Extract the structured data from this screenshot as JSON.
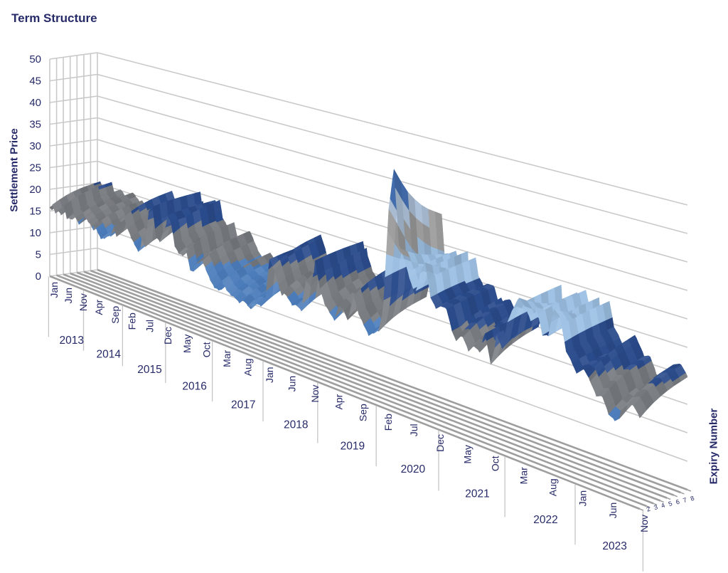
{
  "title": "Term Structure",
  "chart_data": {
    "type": "surface",
    "title": "Term Structure",
    "legend": "none",
    "grid": true,
    "y_axis": {
      "title": "Settlement Price",
      "min": 0,
      "max": 50,
      "step": 5,
      "ticks": [
        0,
        5,
        10,
        15,
        20,
        25,
        30,
        35,
        40,
        45,
        50
      ]
    },
    "x_axis": {
      "title": "",
      "unit": "month",
      "start": "Jan 2013",
      "end": "Nov 2023",
      "tick_positions": [
        0,
        5,
        10,
        15,
        20,
        25,
        30,
        35,
        40,
        45,
        50,
        55,
        60,
        65,
        70,
        75,
        80,
        85,
        90,
        95,
        100,
        105,
        110,
        115,
        120,
        125,
        130
      ],
      "tick_labels": [
        "Jan",
        "Jun",
        "Nov",
        "Apr",
        "Sep",
        "Feb",
        "Jul",
        "Dec",
        "May",
        "Oct",
        "Mar",
        "Aug",
        "Jan",
        "Jun",
        "Nov",
        "Apr",
        "Sep",
        "Feb",
        "Jul",
        "Dec",
        "May",
        "Oct",
        "Mar",
        "Aug",
        "Jan",
        "Jun",
        "Nov"
      ],
      "year_labels": [
        "2013",
        "2014",
        "2015",
        "2016",
        "2017",
        "2018",
        "2019",
        "2020",
        "2021",
        "2022",
        "2023"
      ]
    },
    "z_axis": {
      "title": "Expiry Number",
      "labels": [
        "2",
        "3",
        "4",
        "5",
        "6",
        "7",
        "8"
      ],
      "count": 8
    },
    "band_colors": [
      {
        "range": "0-5",
        "color": "#203864"
      },
      {
        "range": "5-10",
        "color": "#2F5597"
      },
      {
        "range": "10-15",
        "color": "#4C7DBB"
      },
      {
        "range": "15-20",
        "color": "#75797E"
      },
      {
        "range": "20-25",
        "color": "#2B4C8C"
      },
      {
        "range": "25-30",
        "color": "#9FC2E5"
      },
      {
        "range": "30-35",
        "color": "#A9A9A9"
      },
      {
        "range": "35-40",
        "color": "#BCD2EA"
      },
      {
        "range": "40-45",
        "color": "#4B7AC2"
      }
    ],
    "colors": {
      "text": "#262a68",
      "gridline": "#C9C9C9",
      "floor_line": "#9E9E9E",
      "separator": "#C5C5C5"
    },
    "series": {
      "note": "Front-expiry settlement price per month (estimated from surface bands, Jan 2013 - Nov 2023)",
      "front_month": [
        16.5,
        16,
        14.5,
        15.5,
        15,
        17.5,
        15,
        15.5,
        15.5,
        15,
        14,
        15,
        16.5,
        16,
        15.5,
        14.5,
        13.5,
        12.5,
        13,
        14,
        14.5,
        17,
        14.5,
        17.5,
        19,
        17,
        15.5,
        14.5,
        13.5,
        15,
        14,
        22,
        23.5,
        17.5,
        17,
        19.5,
        22,
        21,
        16.5,
        15.5,
        15.5,
        17,
        13.5,
        13.5,
        14.5,
        15.5,
        14,
        12.5,
        11.5,
        11.5,
        12,
        11,
        10.5,
        10.5,
        10,
        11,
        10.5,
        10,
        10.5,
        10.5,
        12,
        21,
        19.5,
        17,
        14.5,
        14,
        13,
        13.5,
        13,
        19.5,
        19,
        23,
        18,
        15.5,
        14.5,
        13.5,
        17,
        16.5,
        14.5,
        19,
        16,
        14.5,
        13,
        14,
        15,
        20,
        38,
        46,
        32,
        30,
        27,
        24.5,
        27.5,
        30,
        24,
        22.5,
        23.5,
        23.5,
        20,
        18,
        18.5,
        16.5,
        18,
        17.5,
        21.5,
        16.5,
        21,
        19,
        24.5,
        27.5,
        30,
        29,
        27,
        28.5,
        24,
        24.5,
        30,
        29,
        23.5,
        22,
        20,
        20.5,
        19,
        17,
        17.5,
        15,
        14.5,
        15.5,
        17,
        17.5,
        16
      ],
      "expiry_spreads": [
        0,
        0.9,
        1.7,
        2.3,
        2.8,
        3.2,
        3.5,
        3.8
      ],
      "curve_regime": {
        "contango_below": 20,
        "flat_below": 28,
        "flat_factor": 0.3,
        "backwardated_below": 32,
        "backwardated_factor": -1,
        "inverted_factor": -3
      }
    }
  }
}
